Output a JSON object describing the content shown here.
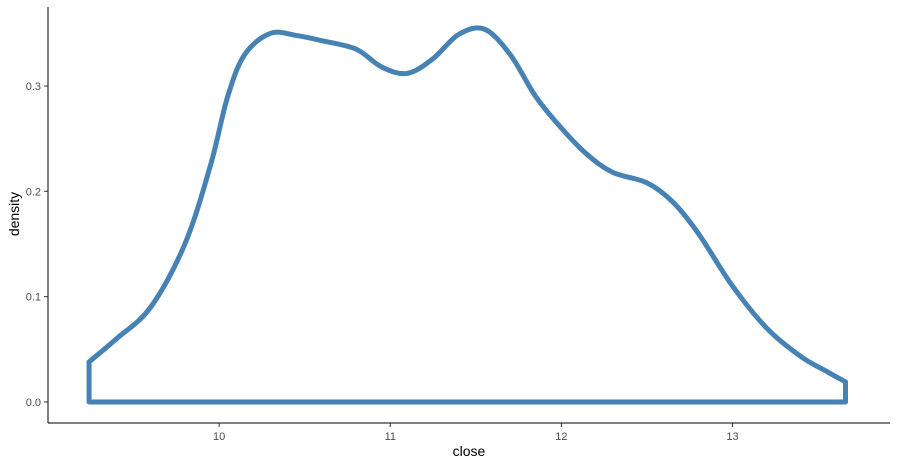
{
  "chart_data": {
    "type": "area",
    "xlabel": "close",
    "ylabel": "density",
    "xlim": [
      9.0,
      13.92
    ],
    "ylim": [
      -0.02,
      0.375
    ],
    "x_ticks": [
      10,
      11,
      12,
      13
    ],
    "x_tick_labels": [
      "10",
      "11",
      "12",
      "13"
    ],
    "y_ticks": [
      0.0,
      0.1,
      0.2,
      0.3
    ],
    "y_tick_labels": [
      "0.0",
      "0.1",
      "0.2",
      "0.3"
    ],
    "grid": false,
    "colors": {
      "line": "#4682b4",
      "fill": "none",
      "axis": "#000000"
    },
    "series": [
      {
        "x": [
          9.24,
          9.4,
          9.6,
          9.8,
          9.95,
          10.05,
          10.15,
          10.3,
          10.45,
          10.6,
          10.8,
          10.95,
          11.1,
          11.25,
          11.4,
          11.55,
          11.7,
          11.85,
          12.0,
          12.15,
          12.3,
          12.5,
          12.65,
          12.8,
          13.0,
          13.2,
          13.4,
          13.55,
          13.66
        ],
        "y": [
          0.038,
          0.06,
          0.09,
          0.15,
          0.225,
          0.29,
          0.33,
          0.35,
          0.348,
          0.343,
          0.335,
          0.318,
          0.312,
          0.326,
          0.349,
          0.354,
          0.33,
          0.29,
          0.26,
          0.235,
          0.218,
          0.208,
          0.19,
          0.16,
          0.11,
          0.07,
          0.043,
          0.029,
          0.019
        ]
      }
    ]
  }
}
